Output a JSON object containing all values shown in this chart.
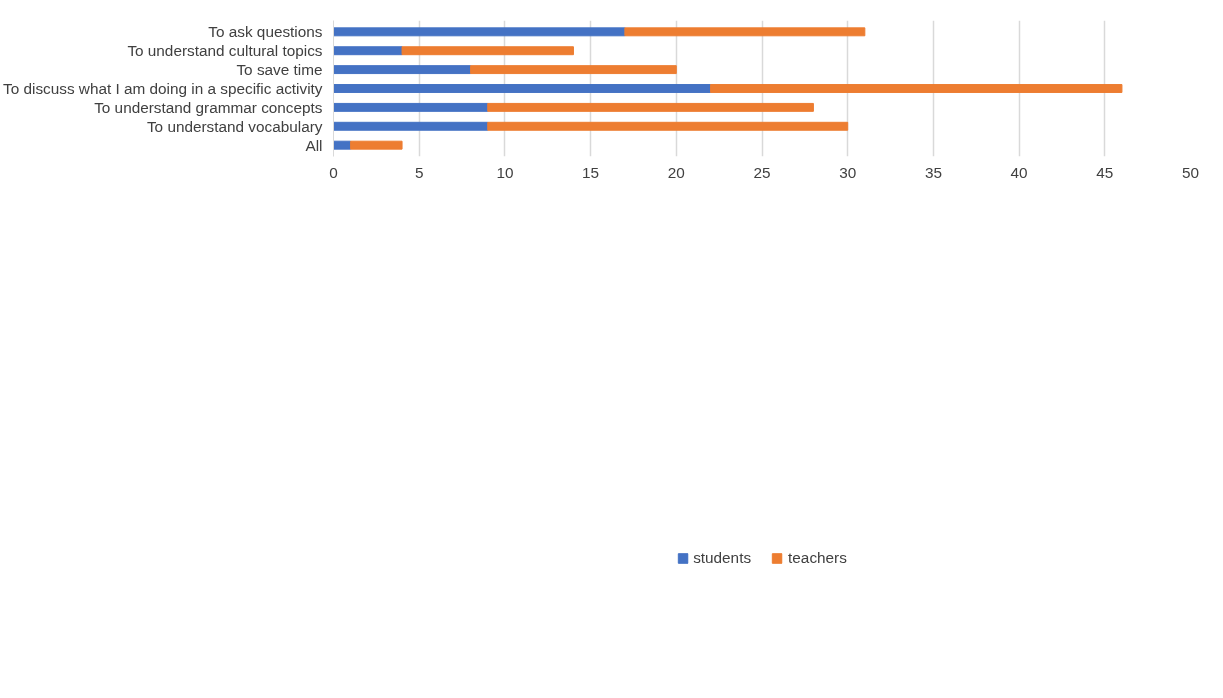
{
  "chart_data": {
    "type": "bar",
    "orientation": "horizontal",
    "stacked": true,
    "categories": [
      "To ask questions",
      "To understand cultural topics",
      "To save time",
      "To discuss what I am doing in a specific activity",
      "To understand grammar concepts",
      "To understand vocabulary",
      "All"
    ],
    "series": [
      {
        "name": "students",
        "color": "#4472c4",
        "values": [
          17,
          4,
          8,
          22,
          9,
          9,
          1
        ]
      },
      {
        "name": "teachers",
        "color": "#ed7d31",
        "values": [
          14,
          10,
          12,
          24,
          19,
          21,
          3
        ]
      }
    ],
    "xlim": [
      0,
      50
    ],
    "xticks": [
      0,
      5,
      10,
      15,
      20,
      25,
      30,
      35,
      40,
      45,
      50
    ],
    "grid": "x",
    "legend": "bottom"
  }
}
